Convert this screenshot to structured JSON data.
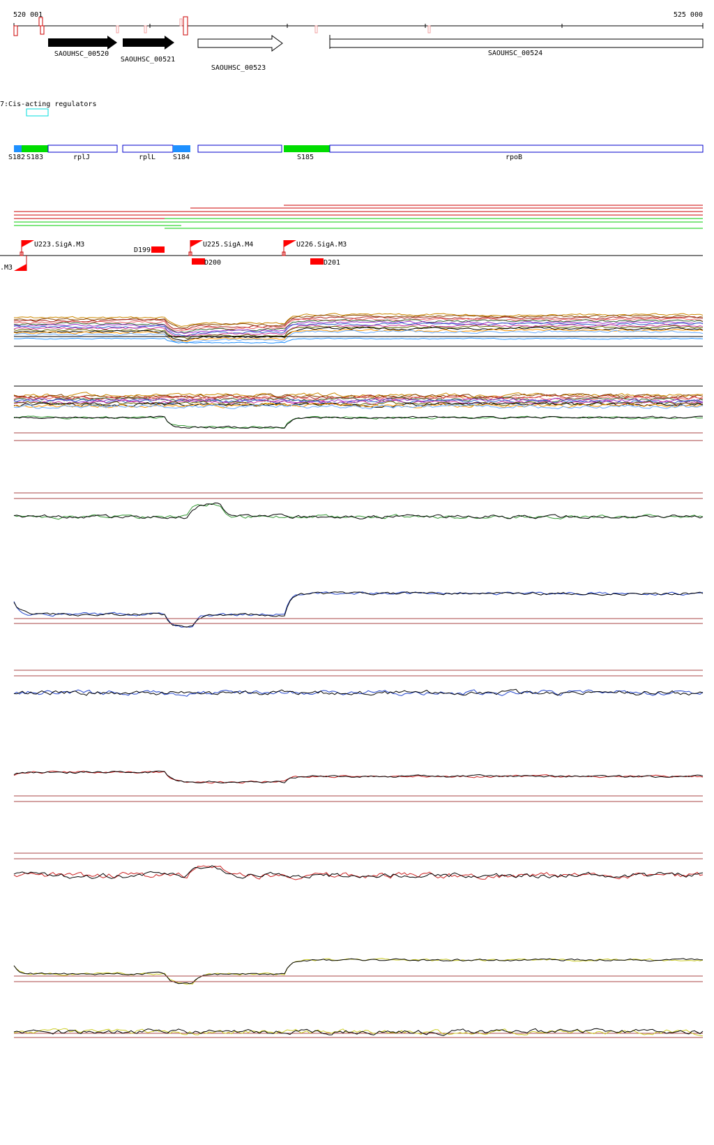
{
  "coords": {
    "start": "520 001",
    "end": "525 000"
  },
  "genes": {
    "filled": [
      "SAOUHSC_00520",
      "SAOUHSC_00521"
    ],
    "open": [
      "SAOUHSC_00523",
      "SAOUHSC_00524"
    ]
  },
  "category_label": "7:Cis-acting regulators",
  "segments": {
    "regulatory": [
      "S182",
      "S183",
      "S184",
      "S185"
    ],
    "transcripts": [
      "rplJ",
      "rplL",
      "rpoB"
    ]
  },
  "promoters": {
    "forward": [
      "U223.SigA.M3",
      "U225.SigA.M4",
      "U226.SigA.M3"
    ],
    "reverse_partial": ".M3",
    "downshifts": [
      "D199",
      "D200",
      "D201"
    ]
  },
  "colors": {
    "red": "#ff0000",
    "green": "#00dd00",
    "blue": "#1e90ff",
    "outline_blue": "#0000cc",
    "dark_red": "#aa4444",
    "track_green": "#339933",
    "track_blue": "#2244cc",
    "track_red": "#cc2222",
    "track_yellow": "#cccc22",
    "cyan_box": "#00dddd"
  }
}
